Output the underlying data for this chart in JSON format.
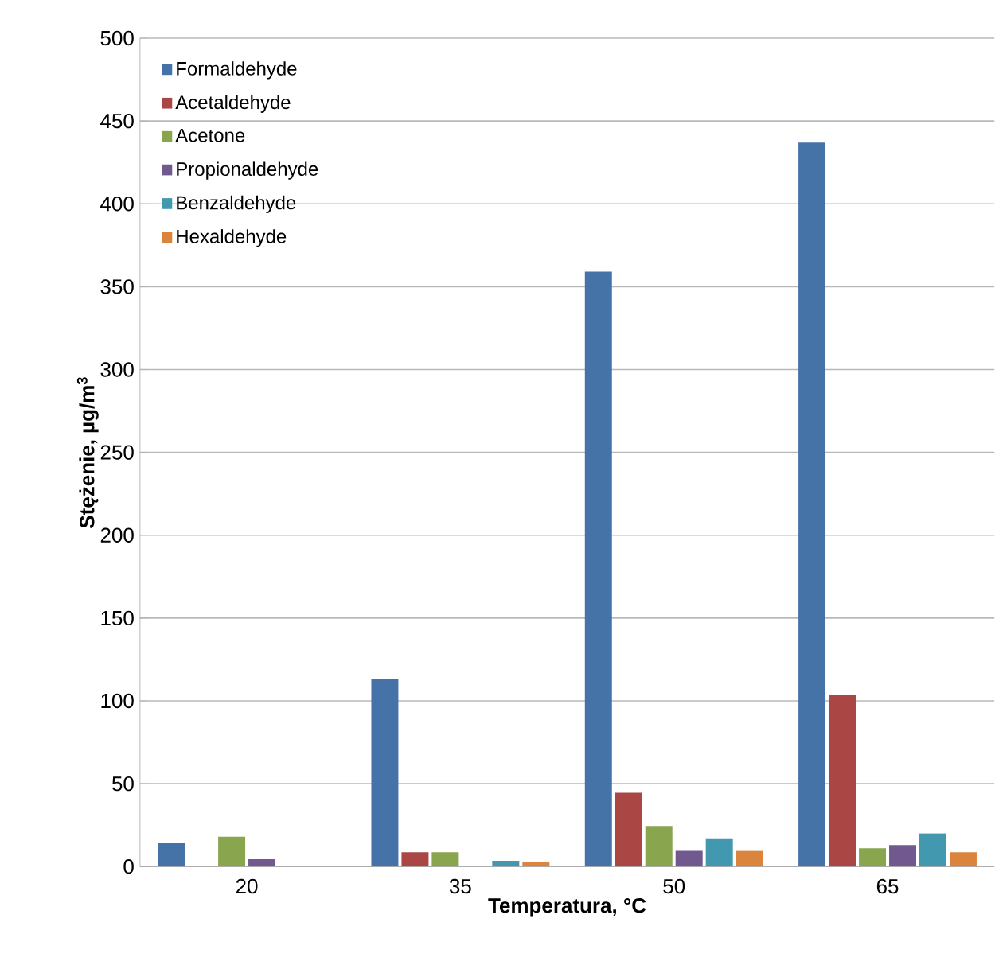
{
  "chart_data": {
    "type": "bar",
    "xlabel": "Temperatura, °C",
    "ylabel": "Stężenie, µg/m$^{3}$",
    "categories": [
      "20",
      "35",
      "50",
      "65"
    ],
    "series": [
      {
        "name": "Formaldehyde",
        "color": "#4572a7",
        "values": [
          14,
          113,
          359,
          437
        ]
      },
      {
        "name": "Acetaldehyde",
        "color": "#aa4643",
        "values": [
          0,
          8.6,
          44.6,
          103.5
        ]
      },
      {
        "name": "Acetone",
        "color": "#89a54e",
        "values": [
          18,
          8.6,
          24.5,
          11
        ]
      },
      {
        "name": "Propionaldehyde",
        "color": "#71588f",
        "values": [
          4.5,
          0,
          9.5,
          13
        ]
      },
      {
        "name": "Benzaldehyde",
        "color": "#4198af",
        "values": [
          0,
          3.5,
          17,
          20
        ]
      },
      {
        "name": "Hexaldehyde",
        "color": "#db843d",
        "values": [
          0,
          2.5,
          9.5,
          8.6
        ]
      }
    ],
    "ylim": [
      0,
      500
    ],
    "yticks": [
      0,
      50,
      100,
      150,
      200,
      250,
      300,
      350,
      400,
      450,
      500
    ],
    "grid": "y",
    "legend": "top left"
  }
}
